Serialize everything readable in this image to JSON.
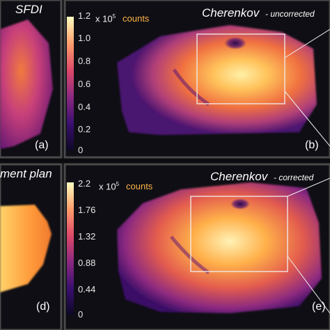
{
  "panels": {
    "a": {
      "title": "SFDI",
      "letter": "(a)"
    },
    "b": {
      "title": "Cherenkov",
      "subtitle": "- uncorrected",
      "letter": "(b)"
    },
    "d": {
      "title": "ment plan",
      "letter": "(d)"
    },
    "e": {
      "title": "Cherenkov",
      "subtitle": "- corrected",
      "letter": "(e)"
    }
  },
  "colorbar_top": {
    "ticks": [
      "1.2",
      "1.0",
      "0.8",
      "0.6",
      "0.4",
      "0.2",
      "0"
    ],
    "multiplier": "x 10",
    "exponent": "5",
    "unit": "counts"
  },
  "colorbar_bottom": {
    "ticks": [
      "2.2",
      "1.76",
      "1.32",
      "0.88",
      "0.44",
      "0"
    ],
    "multiplier": "x 10",
    "exponent": "5",
    "unit": "counts"
  },
  "colors": {
    "background": "#0b0b10",
    "colormap": [
      "#0d0826",
      "#3b0f70",
      "#8c2981",
      "#de4968",
      "#fe9f6d",
      "#fcfdbf"
    ],
    "counts_label": "#ffb347",
    "roi_box": "#f0f0f0"
  }
}
